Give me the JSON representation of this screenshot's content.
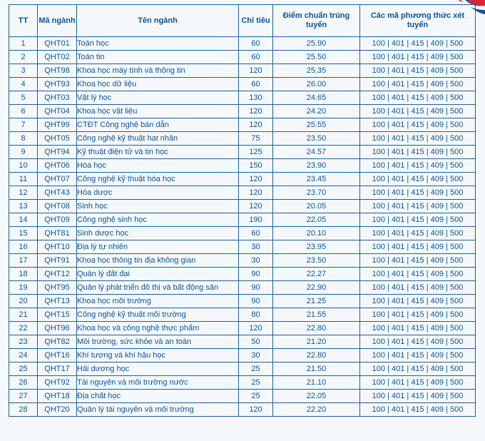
{
  "headers": {
    "tt": "TT",
    "code": "Mã ngành",
    "name": "Tên ngành",
    "quota": "Chỉ tiêu",
    "score": "Điểm chuẩn trúng tuyển",
    "methods": "Các mã phương thức xét tuyển"
  },
  "rows": [
    {
      "tt": "1",
      "code": "QHT01",
      "name": "Toán học",
      "quota": "60",
      "score": "25.90",
      "methods": "100 | 401 | 415 | 409 | 500"
    },
    {
      "tt": "2",
      "code": "QHT02",
      "name": "Toán tin",
      "quota": "60",
      "score": "25.50",
      "methods": "100 | 401 | 415 | 409 | 500"
    },
    {
      "tt": "3",
      "code": "QHT98",
      "name": "Khoa học máy tính và thông tin",
      "quota": "120",
      "score": "25.35",
      "methods": "100 | 401 | 415 | 409 | 500"
    },
    {
      "tt": "4",
      "code": "QHT93",
      "name": "Khoa học dữ liệu",
      "quota": "60",
      "score": "26.00",
      "methods": "100 | 401 | 415 | 409 | 500"
    },
    {
      "tt": "5",
      "code": "QHT03",
      "name": "Vật lý học",
      "quota": "130",
      "score": "24.65",
      "methods": "100 | 401 | 415 | 409 | 500"
    },
    {
      "tt": "6",
      "code": "QHT04",
      "name": "Khoa học vật liệu",
      "quota": "120",
      "score": "24.20",
      "methods": "100 | 401 | 415 | 409 | 500"
    },
    {
      "tt": "7",
      "code": "QHT99",
      "name": "CTĐT Công nghệ bán dẫn",
      "quota": "120",
      "score": "25.55",
      "methods": "100 | 401 | 415 | 409 | 500"
    },
    {
      "tt": "8",
      "code": "QHT05",
      "name": "Công nghệ kỹ thuật hạt nhân",
      "quota": "75",
      "score": "23.50",
      "methods": "100 | 401 | 415 | 409 | 500"
    },
    {
      "tt": "9",
      "code": "QHT94",
      "name": "Kỹ thuật điện tử và tin học",
      "quota": "125",
      "score": "24.57",
      "methods": "100 | 401 | 415 | 409 | 500"
    },
    {
      "tt": "10",
      "code": "QHT06",
      "name": "Hóa học",
      "quota": "150",
      "score": "23.90",
      "methods": "100 | 401 | 415 | 409 | 500"
    },
    {
      "tt": "11",
      "code": "QHT07",
      "name": "Công nghệ kỹ thuật hóa học",
      "quota": "120",
      "score": "23.45",
      "methods": "100 | 401 | 415 | 409 | 500"
    },
    {
      "tt": "12",
      "code": "QHT43",
      "name": "Hóa dược",
      "quota": "120",
      "score": "23.70",
      "methods": "100 | 401 | 415 | 409 | 500"
    },
    {
      "tt": "13",
      "code": "QHT08",
      "name": "Sinh học",
      "quota": "120",
      "score": "20.05",
      "methods": "100 | 401 | 415 | 409 | 500"
    },
    {
      "tt": "14",
      "code": "QHT09",
      "name": "Công nghệ sinh học",
      "quota": "190",
      "score": "22.05",
      "methods": "100 | 401 | 415 | 409 | 500"
    },
    {
      "tt": "15",
      "code": "QHT81",
      "name": "Sinh dược học",
      "quota": "60",
      "score": "20.10",
      "methods": "100 | 401 | 415 | 409 | 500"
    },
    {
      "tt": "16",
      "code": "QHT10",
      "name": "Địa lý tự nhiên",
      "quota": "30",
      "score": "23.95",
      "methods": "100 | 401 | 415 | 409 | 500"
    },
    {
      "tt": "17",
      "code": "QHT91",
      "name": "Khoa học thông tin địa không gian",
      "quota": "30",
      "score": "23.50",
      "methods": "100 | 401 | 415 | 409 | 500"
    },
    {
      "tt": "18",
      "code": "QHT12",
      "name": "Quản lý đất đai",
      "quota": "90",
      "score": "22.27",
      "methods": "100 | 401 | 415 | 409 | 500"
    },
    {
      "tt": "19",
      "code": "QHT95",
      "name": "Quản lý phát triển đô thị và bất động sản",
      "quota": "90",
      "score": "22.90",
      "methods": "100 | 401 | 415 | 409 | 500"
    },
    {
      "tt": "20",
      "code": "QHT13",
      "name": "Khoa học môi trường",
      "quota": "90",
      "score": "21.25",
      "methods": "100 | 401 | 415 | 409 | 500"
    },
    {
      "tt": "21",
      "code": "QHT15",
      "name": "Công nghệ kỹ thuật môi trường",
      "quota": "80",
      "score": "21.55",
      "methods": "100 | 401 | 415 | 409 | 500"
    },
    {
      "tt": "22",
      "code": "QHT96",
      "name": "Khoa học và công nghệ thực phẩm",
      "quota": "120",
      "score": "22.80",
      "methods": "100 | 401 | 415 | 409 | 500"
    },
    {
      "tt": "23",
      "code": "QHT82",
      "name": "Môi trường, sức khỏe và an toàn",
      "quota": "50",
      "score": "21.20",
      "methods": "100 | 401 | 415 | 409 | 500"
    },
    {
      "tt": "24",
      "code": "QHT16",
      "name": "Khí tượng và khí hậu học",
      "quota": "30",
      "score": "22.80",
      "methods": "100 | 401 | 415 | 409 | 500"
    },
    {
      "tt": "25",
      "code": "QHT17",
      "name": "Hải dương học",
      "quota": "25",
      "score": "21.50",
      "methods": "100 | 401 | 415 | 409 | 500"
    },
    {
      "tt": "26",
      "code": "QHT92",
      "name": "Tài nguyên và môi trường nước",
      "quota": "25",
      "score": "21.10",
      "methods": "100 | 401 | 415 | 409 | 500"
    },
    {
      "tt": "27",
      "code": "QHT18",
      "name": "Địa chất học",
      "quota": "25",
      "score": "22.05",
      "methods": "100 | 401 | 415 | 409 | 500"
    },
    {
      "tt": "28",
      "code": "QHT20",
      "name": "Quản lý tài nguyên và môi trường",
      "quota": "120",
      "score": "22.20",
      "methods": "100 | 401 | 415 | 409 | 500"
    }
  ],
  "colors": {
    "text": "#0d5390",
    "border": "#1f5f97",
    "background": "#f4f8fb",
    "decor_red": "#d9262f",
    "decor_blue": "#1c4f9c"
  }
}
